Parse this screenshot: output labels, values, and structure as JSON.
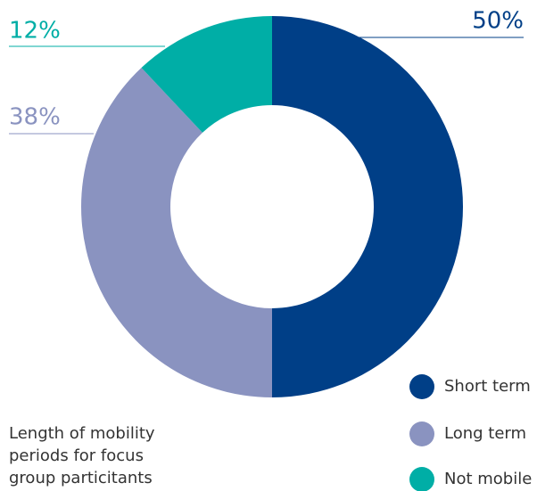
{
  "chart_data": {
    "type": "donut",
    "title": "Length of mobility periods for focus group particitants",
    "categories": [
      "Short term",
      "Long term",
      "Not mobile"
    ],
    "values": [
      50,
      38,
      12
    ],
    "value_labels": [
      "50%",
      "38%",
      "12%"
    ],
    "colors": [
      "#003f87",
      "#8a93c0",
      "#00aea6"
    ],
    "legend": "bottom-right"
  }
}
